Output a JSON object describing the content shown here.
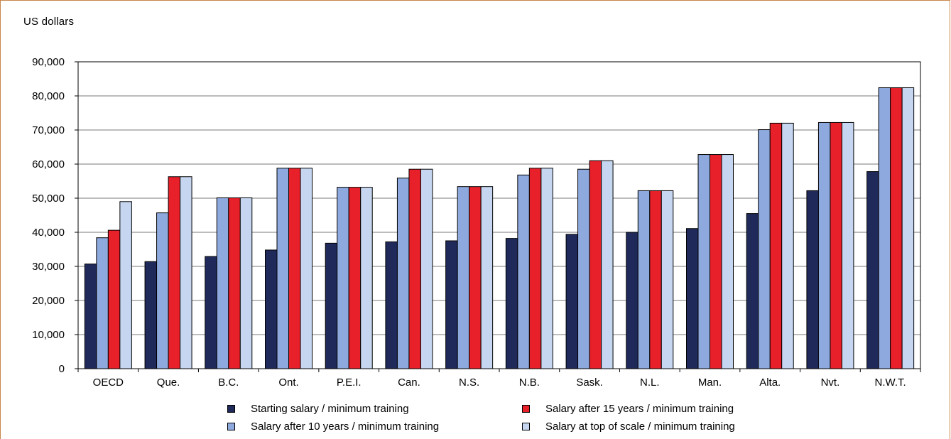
{
  "colors": {
    "frame": "#c8864a",
    "series": [
      "#1f2a5a",
      "#8ea9de",
      "#e8202a",
      "#c6d6f0"
    ]
  },
  "chart_data": {
    "type": "bar",
    "ylabel": "US  dollars",
    "ylim": [
      0,
      90000
    ],
    "yticks": [
      0,
      10000,
      20000,
      30000,
      40000,
      50000,
      60000,
      70000,
      80000,
      90000
    ],
    "ytick_labels": [
      "0",
      "10,000",
      "20,000",
      "30,000",
      "40,000",
      "50,000",
      "60,000",
      "70,000",
      "80,000",
      "90,000"
    ],
    "grid": true,
    "legend_position": "bottom",
    "categories": [
      "OECD",
      "Que.",
      "B.C.",
      "Ont.",
      "P.E.I.",
      "Can.",
      "N.S.",
      "N.B.",
      "Sask.",
      "N.L.",
      "Man.",
      "Alta.",
      "Nvt.",
      "N.W.T."
    ],
    "series": [
      {
        "name": "Starting  salary / minimum training",
        "values": [
          30700,
          31400,
          32900,
          34800,
          36800,
          37200,
          37500,
          38200,
          39400,
          40000,
          41100,
          45500,
          52200,
          57800
        ]
      },
      {
        "name": "Salary after 10 years / minimum training",
        "values": [
          38400,
          45700,
          50100,
          58800,
          53200,
          55900,
          53400,
          56800,
          58500,
          52200,
          62800,
          70100,
          72200,
          82400
        ]
      },
      {
        "name": "Salary after 15 years / minimum training",
        "values": [
          40600,
          56300,
          50100,
          58800,
          53200,
          58500,
          53400,
          58800,
          61000,
          52200,
          62800,
          72000,
          72200,
          82400
        ]
      },
      {
        "name": "Salary at top of scale / minimum training",
        "values": [
          49000,
          56300,
          50100,
          58800,
          53200,
          58500,
          53400,
          58800,
          61000,
          52200,
          62800,
          72000,
          72200,
          82400
        ]
      }
    ]
  }
}
